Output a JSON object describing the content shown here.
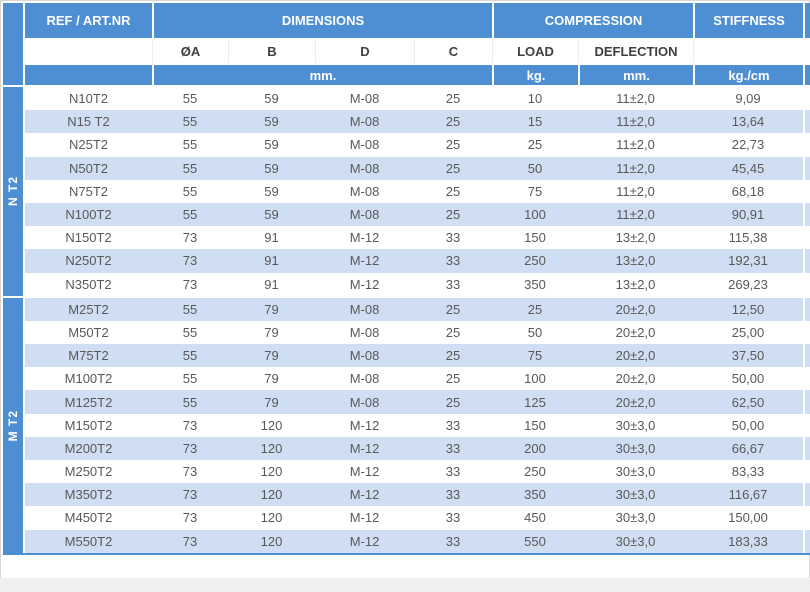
{
  "header": {
    "ref_label": "REF / ART.NR",
    "dimensions_label": "DIMENSIONS",
    "compression_label": "COMPRESSION",
    "stiffness_label": "STIFFNESS",
    "sub_columns": [
      "ØA",
      "B",
      "D",
      "C",
      "LOAD",
      "DEFLECTION"
    ],
    "units": {
      "dimensions": "mm.",
      "load": "kg.",
      "deflection": "mm.",
      "stiffness": "kg./cm"
    }
  },
  "sections": [
    {
      "group_label": "N T2",
      "first_row_shade": "white",
      "rows": [
        [
          "N10T2",
          "55",
          "59",
          "M-08",
          "25",
          "10",
          "11±2,0",
          "9,09"
        ],
        [
          "N15 T2",
          "55",
          "59",
          "M-08",
          "25",
          "15",
          "11±2,0",
          "13,64"
        ],
        [
          "N25T2",
          "55",
          "59",
          "M-08",
          "25",
          "25",
          "11±2,0",
          "22,73"
        ],
        [
          "N50T2",
          "55",
          "59",
          "M-08",
          "25",
          "50",
          "11±2,0",
          "45,45"
        ],
        [
          "N75T2",
          "55",
          "59",
          "M-08",
          "25",
          "75",
          "11±2,0",
          "68,18"
        ],
        [
          "N100T2",
          "55",
          "59",
          "M-08",
          "25",
          "100",
          "11±2,0",
          "90,91"
        ],
        [
          "N150T2",
          "73",
          "91",
          "M-12",
          "33",
          "150",
          "13±2,0",
          "115,38"
        ],
        [
          "N250T2",
          "73",
          "91",
          "M-12",
          "33",
          "250",
          "13±2,0",
          "192,31"
        ],
        [
          "N350T2",
          "73",
          "91",
          "M-12",
          "33",
          "350",
          "13±2,0",
          "269,23"
        ]
      ]
    },
    {
      "group_label": "M T2",
      "first_row_shade": "blue",
      "rows": [
        [
          "M25T2",
          "55",
          "79",
          "M-08",
          "25",
          "25",
          "20±2,0",
          "12,50"
        ],
        [
          "M50T2",
          "55",
          "79",
          "M-08",
          "25",
          "50",
          "20±2,0",
          "25,00"
        ],
        [
          "M75T2",
          "55",
          "79",
          "M-08",
          "25",
          "75",
          "20±2,0",
          "37,50"
        ],
        [
          "M100T2",
          "55",
          "79",
          "M-08",
          "25",
          "100",
          "20±2,0",
          "50,00"
        ],
        [
          "M125T2",
          "55",
          "79",
          "M-08",
          "25",
          "125",
          "20±2,0",
          "62,50"
        ],
        [
          "M150T2",
          "73",
          "120",
          "M-12",
          "33",
          "150",
          "30±3,0",
          "50,00"
        ],
        [
          "M200T2",
          "73",
          "120",
          "M-12",
          "33",
          "200",
          "30±3,0",
          "66,67"
        ],
        [
          "M250T2",
          "73",
          "120",
          "M-12",
          "33",
          "250",
          "30±3,0",
          "83,33"
        ],
        [
          "M350T2",
          "73",
          "120",
          "M-12",
          "33",
          "350",
          "30±3,0",
          "116,67"
        ],
        [
          "M450T2",
          "73",
          "120",
          "M-12",
          "33",
          "450",
          "30±3,0",
          "150,00"
        ],
        [
          "M550T2",
          "73",
          "120",
          "M-12",
          "33",
          "550",
          "30±3,0",
          "183,33"
        ]
      ]
    }
  ],
  "colors": {
    "header_blue": "#4e8ed3",
    "row_alt_blue": "#cfdef2",
    "data_text": "#595959",
    "page_bottom_gray": "#efefef"
  }
}
